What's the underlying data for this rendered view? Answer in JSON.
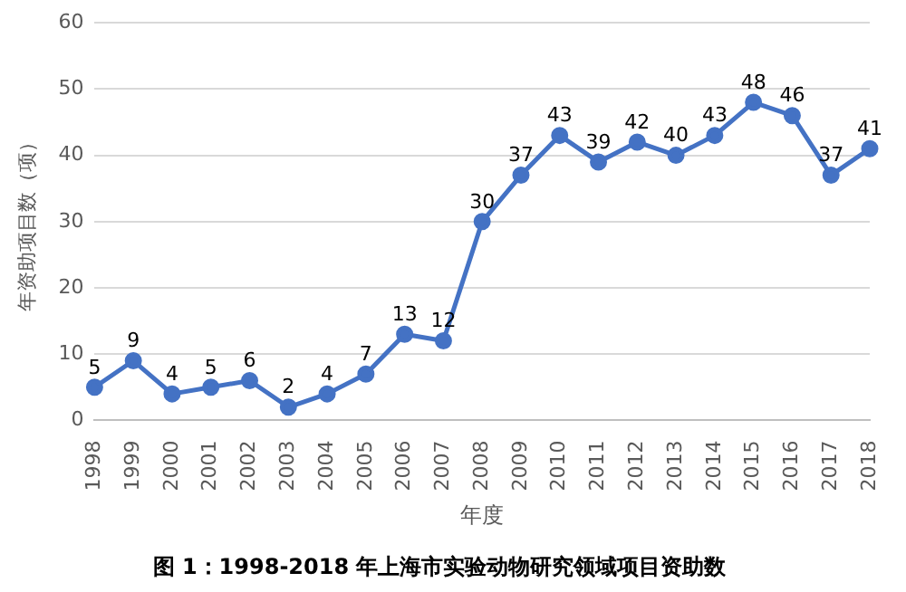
{
  "chart_data": {
    "type": "line",
    "title": "图 1：1998-2018 年上海市实验动物研究领域项目资助数",
    "xlabel": "年度",
    "ylabel": "年资助项目数（项）",
    "categories": [
      "1998",
      "1999",
      "2000",
      "2001",
      "2002",
      "2003",
      "2004",
      "2005",
      "2006",
      "2007",
      "2008",
      "2009",
      "2010",
      "2011",
      "2012",
      "2013",
      "2014",
      "2015",
      "2016",
      "2017",
      "2018"
    ],
    "values": [
      5,
      9,
      4,
      5,
      6,
      2,
      4,
      7,
      13,
      12,
      30,
      37,
      43,
      39,
      42,
      40,
      43,
      48,
      46,
      37,
      41
    ],
    "color": "#4472c4",
    "ylim": [
      0,
      60
    ],
    "yticks": [
      0,
      10,
      20,
      30,
      40,
      50,
      60
    ],
    "grid": "y",
    "marker": "circle",
    "line_style": "solid",
    "data_labels": true
  }
}
